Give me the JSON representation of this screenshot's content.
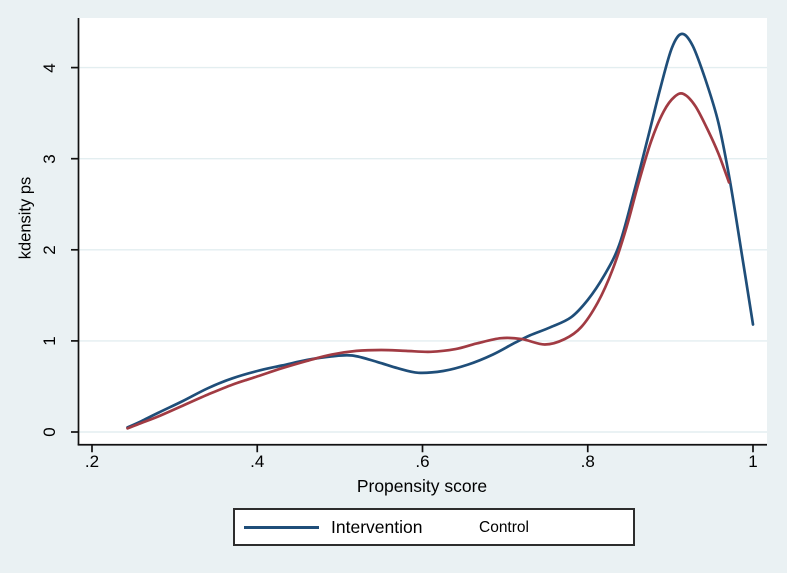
{
  "figure": {
    "background_color": "#EAF1F3",
    "plot_background_color": "#FFFFFF",
    "gridline_color": "#E3EEF0",
    "axis_color": "#111111",
    "text_color": "#000000"
  },
  "chart_data": {
    "type": "line",
    "title": "",
    "xlabel": "Propensity score",
    "ylabel": "kdensity ps",
    "xlim": [
      0.183,
      1.017
    ],
    "ylim": [
      -0.13,
      4.54
    ],
    "x_ticks": [
      0.2,
      0.4,
      0.6,
      0.8,
      1.0
    ],
    "x_tick_labels": [
      ".2",
      ".4",
      ".6",
      ".8",
      "1"
    ],
    "y_ticks": [
      0,
      1,
      2,
      3,
      4
    ],
    "y_tick_labels": [
      "0",
      "1",
      "2",
      "3",
      "4"
    ],
    "grid": "horizontal-only",
    "legend_position": "bottom-center",
    "series": [
      {
        "name": "Intervention",
        "color": "#1F4E79",
        "points": [
          [
            0.243,
            0.05
          ],
          [
            0.26,
            0.12
          ],
          [
            0.28,
            0.21
          ],
          [
            0.31,
            0.34
          ],
          [
            0.34,
            0.48
          ],
          [
            0.37,
            0.59
          ],
          [
            0.4,
            0.67
          ],
          [
            0.43,
            0.73
          ],
          [
            0.46,
            0.79
          ],
          [
            0.49,
            0.83
          ],
          [
            0.515,
            0.84
          ],
          [
            0.545,
            0.77
          ],
          [
            0.57,
            0.7
          ],
          [
            0.595,
            0.65
          ],
          [
            0.625,
            0.67
          ],
          [
            0.655,
            0.74
          ],
          [
            0.685,
            0.85
          ],
          [
            0.71,
            0.97
          ],
          [
            0.73,
            1.06
          ],
          [
            0.755,
            1.15
          ],
          [
            0.78,
            1.26
          ],
          [
            0.8,
            1.45
          ],
          [
            0.82,
            1.72
          ],
          [
            0.838,
            2.05
          ],
          [
            0.855,
            2.6
          ],
          [
            0.872,
            3.2
          ],
          [
            0.888,
            3.78
          ],
          [
            0.902,
            4.22
          ],
          [
            0.914,
            4.37
          ],
          [
            0.927,
            4.24
          ],
          [
            0.942,
            3.88
          ],
          [
            0.958,
            3.4
          ],
          [
            0.972,
            2.76
          ],
          [
            0.986,
            1.98
          ],
          [
            1.0,
            1.18
          ]
        ]
      },
      {
        "name": "Control",
        "color": "#A13B43",
        "points": [
          [
            0.243,
            0.04
          ],
          [
            0.26,
            0.1
          ],
          [
            0.28,
            0.17
          ],
          [
            0.31,
            0.29
          ],
          [
            0.34,
            0.41
          ],
          [
            0.37,
            0.52
          ],
          [
            0.4,
            0.61
          ],
          [
            0.43,
            0.7
          ],
          [
            0.46,
            0.78
          ],
          [
            0.49,
            0.85
          ],
          [
            0.52,
            0.89
          ],
          [
            0.55,
            0.9
          ],
          [
            0.58,
            0.89
          ],
          [
            0.61,
            0.88
          ],
          [
            0.64,
            0.91
          ],
          [
            0.665,
            0.97
          ],
          [
            0.695,
            1.03
          ],
          [
            0.72,
            1.02
          ],
          [
            0.748,
            0.96
          ],
          [
            0.772,
            1.02
          ],
          [
            0.792,
            1.15
          ],
          [
            0.812,
            1.42
          ],
          [
            0.83,
            1.78
          ],
          [
            0.847,
            2.25
          ],
          [
            0.862,
            2.75
          ],
          [
            0.877,
            3.2
          ],
          [
            0.892,
            3.52
          ],
          [
            0.905,
            3.68
          ],
          [
            0.916,
            3.71
          ],
          [
            0.93,
            3.58
          ],
          [
            0.945,
            3.32
          ],
          [
            0.958,
            3.06
          ],
          [
            0.971,
            2.74
          ]
        ]
      }
    ]
  },
  "legend": {
    "entries": [
      {
        "label": "Intervention",
        "swatch": "line",
        "color": "#1F4E79"
      },
      {
        "label": "Control",
        "swatch": "none"
      }
    ]
  }
}
